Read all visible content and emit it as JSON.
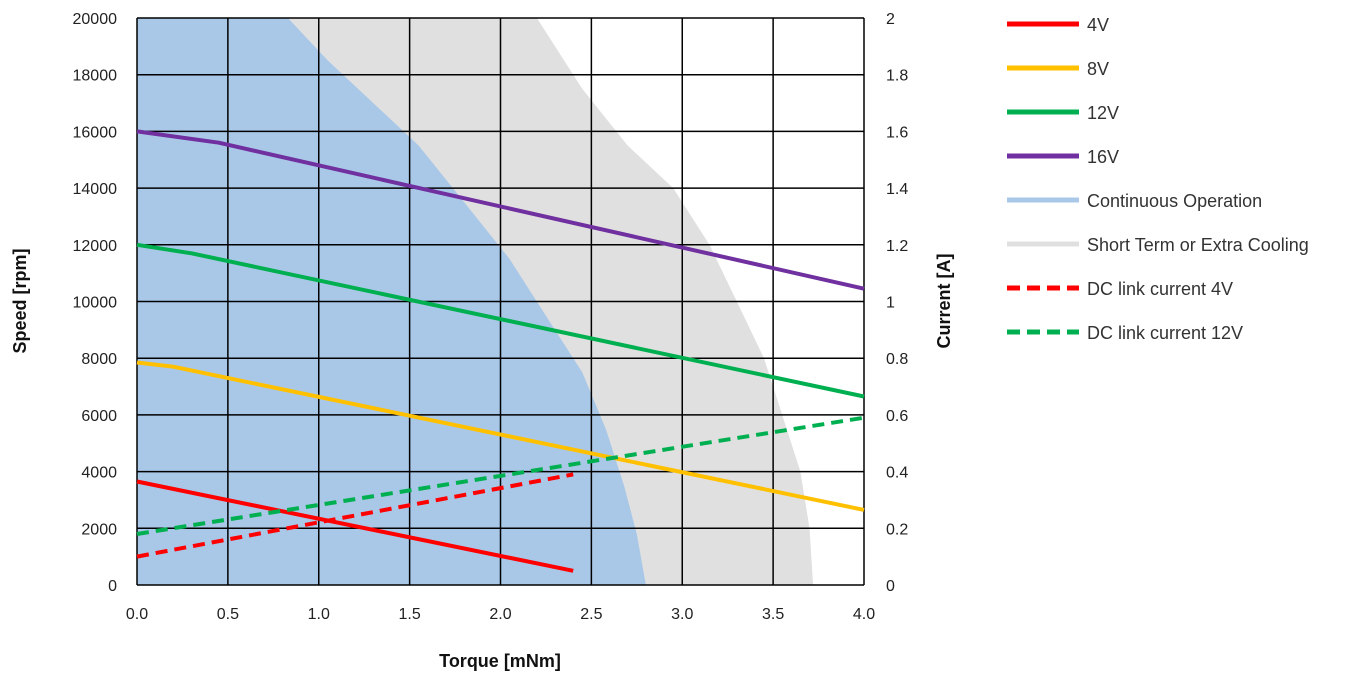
{
  "chart_data": {
    "type": "line",
    "title": "",
    "xlabel": "Torque [mNm]",
    "ylabel": "Speed [rpm]",
    "y2label": "Current [A]",
    "xlim": [
      0,
      4
    ],
    "ylim": [
      0,
      20000
    ],
    "y2lim": [
      0,
      2
    ],
    "x_ticks": [
      "0.0",
      "0.5",
      "1.0",
      "1.5",
      "2.0",
      "2.5",
      "3.0",
      "3.5",
      "4.0"
    ],
    "y_ticks": [
      "0",
      "2000",
      "4000",
      "6000",
      "8000",
      "10000",
      "12000",
      "14000",
      "16000",
      "18000",
      "20000"
    ],
    "y2_ticks": [
      "0",
      "0.2",
      "0.4",
      "0.6",
      "0.8",
      "1",
      "1.2",
      "1.4",
      "1.6",
      "1.8",
      "2"
    ],
    "grid": true,
    "legend_position": "right",
    "areas": [
      {
        "name": "Short Term or Extra Cooling",
        "color": "#e0e0e0",
        "boundary": [
          [
            0,
            20000
          ],
          [
            2.2,
            20000
          ],
          [
            2.45,
            17500
          ],
          [
            2.7,
            15500
          ],
          [
            2.95,
            14000
          ],
          [
            3.15,
            12000
          ],
          [
            3.3,
            10000
          ],
          [
            3.45,
            8000
          ],
          [
            3.55,
            6000
          ],
          [
            3.65,
            4000
          ],
          [
            3.7,
            2000
          ],
          [
            3.72,
            0
          ]
        ]
      },
      {
        "name": "Continuous Operation",
        "color": "#a9c8e8",
        "boundary": [
          [
            0,
            20000
          ],
          [
            0.83,
            20000
          ],
          [
            1.05,
            18500
          ],
          [
            1.3,
            17000
          ],
          [
            1.55,
            15500
          ],
          [
            1.8,
            13500
          ],
          [
            2.05,
            11500
          ],
          [
            2.25,
            9500
          ],
          [
            2.45,
            7500
          ],
          [
            2.58,
            5500
          ],
          [
            2.68,
            3500
          ],
          [
            2.75,
            1800
          ],
          [
            2.8,
            0
          ]
        ]
      }
    ],
    "series": [
      {
        "name": "4V",
        "axis": "left",
        "dashed": false,
        "color": "#ff0000",
        "x": [
          0,
          2.4
        ],
        "values": [
          3650,
          500
        ]
      },
      {
        "name": "8V",
        "axis": "left",
        "dashed": false,
        "color": "#ffc000",
        "x": [
          0,
          0.2,
          4.0
        ],
        "values": [
          7850,
          7700,
          2650
        ]
      },
      {
        "name": "12V",
        "axis": "left",
        "dashed": false,
        "color": "#00b050",
        "x": [
          0,
          0.3,
          4.0
        ],
        "values": [
          12000,
          11700,
          6650
        ]
      },
      {
        "name": "16V",
        "axis": "left",
        "dashed": false,
        "color": "#7030a0",
        "x": [
          0,
          0.45,
          4.0
        ],
        "values": [
          16000,
          15600,
          10450
        ]
      },
      {
        "name": "DC link current 4V",
        "axis": "right",
        "dashed": true,
        "color": "#ff0000",
        "x": [
          0,
          2.4
        ],
        "values": [
          0.1,
          0.39
        ]
      },
      {
        "name": "DC link current 12V",
        "axis": "right",
        "dashed": true,
        "color": "#00b050",
        "x": [
          0,
          4.0
        ],
        "values": [
          0.18,
          0.59
        ]
      }
    ],
    "legend": [
      {
        "label": "4V",
        "color": "#ff0000",
        "dashed": false
      },
      {
        "label": "8V",
        "color": "#ffc000",
        "dashed": false
      },
      {
        "label": "12V",
        "color": "#00b050",
        "dashed": false
      },
      {
        "label": "16V",
        "color": "#7030a0",
        "dashed": false
      },
      {
        "label": "Continuous Operation",
        "color": "#a9c8e8",
        "dashed": false
      },
      {
        "label": "Short Term or Extra Cooling",
        "color": "#e0e0e0",
        "dashed": false
      },
      {
        "label": "DC link current 4V",
        "color": "#ff0000",
        "dashed": true
      },
      {
        "label": "DC link current 12V",
        "color": "#00b050",
        "dashed": true
      }
    ]
  }
}
